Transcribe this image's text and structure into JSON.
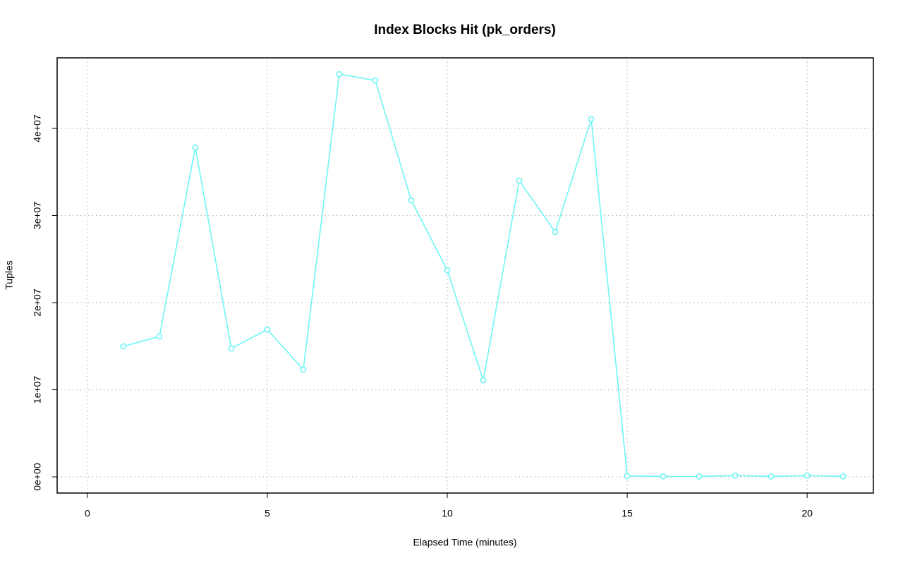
{
  "chart_data": {
    "type": "line",
    "title": "Index Blocks Hit (pk_orders)",
    "x_label": "Elapsed Time (minutes)",
    "y_label": "Tuples",
    "x": [
      1,
      2,
      3,
      4,
      5,
      6,
      7,
      8,
      9,
      10,
      11,
      12,
      13,
      14,
      15,
      16,
      17,
      18,
      19,
      20,
      21
    ],
    "series": [
      {
        "name": "pk_orders",
        "color": "#6ff5f5",
        "values": [
          14980000,
          16110000,
          37810000,
          14740000,
          16920000,
          12310000,
          46230000,
          45510000,
          31740000,
          23720000,
          11090000,
          34010000,
          28100000,
          41050000,
          100000,
          50000,
          50000,
          150000,
          50000,
          150000,
          50000
        ]
      }
    ],
    "xlim": [
      -0.84,
      21.84
    ],
    "xticks": [
      0,
      5,
      10,
      15,
      20
    ],
    "ylim": [
      -1860000,
      48100000
    ],
    "yticks": [
      {
        "value": 0,
        "label": "0e+00"
      },
      {
        "value": 10000000,
        "label": "1e+07"
      },
      {
        "value": 20000000,
        "label": "2e+07"
      },
      {
        "value": 30000000,
        "label": "3e+07"
      },
      {
        "value": 40000000,
        "label": "4e+07"
      }
    ],
    "grid": true
  }
}
